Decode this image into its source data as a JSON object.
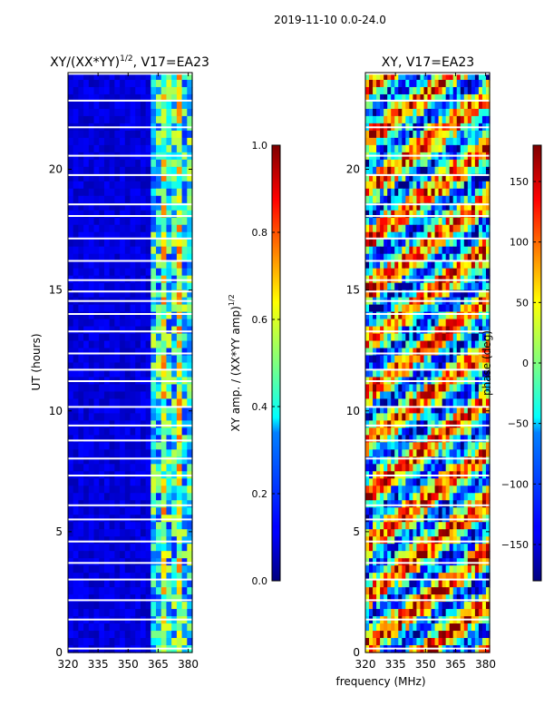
{
  "figure": {
    "suptitle": "2019-11-10 0.0-24.0",
    "xlabel_shared": "frequency (MHz)"
  },
  "chart_data": [
    {
      "type": "heatmap",
      "title_prefix": "XY/(XX*YY)",
      "title_sup": "1/2",
      "title_suffix": ", V17=EA23",
      "ylabel": "UT (hours)",
      "x_ticks": [
        320,
        335,
        350,
        365,
        380
      ],
      "x_tick_labels": [
        "320",
        "335",
        "350",
        "365",
        "380"
      ],
      "xlim": [
        320,
        382
      ],
      "y_ticks": [
        0,
        5,
        10,
        15,
        20
      ],
      "y_tick_labels": [
        "0",
        "5",
        "10",
        "15",
        "20"
      ],
      "ylim": [
        0,
        24
      ],
      "colormap": "jet",
      "colorbar": {
        "label_prefix": "XY amp. / (XX*YY amp)",
        "label_sup": "1/2",
        "range": [
          0.0,
          1.0
        ],
        "ticks": [
          0.0,
          0.2,
          0.4,
          0.6,
          0.8,
          1.0
        ],
        "tick_labels": [
          "0.0",
          "0.2",
          "0.4",
          "0.6",
          "0.8",
          "1.0"
        ]
      }
    },
    {
      "type": "heatmap",
      "title": "XY, V17=EA23",
      "x_ticks": [
        320,
        335,
        350,
        365,
        380
      ],
      "x_tick_labels": [
        "320",
        "335",
        "350",
        "365",
        "380"
      ],
      "xlim": [
        320,
        382
      ],
      "y_ticks": [
        0,
        5,
        10,
        15,
        20
      ],
      "y_tick_labels": [
        "0",
        "5",
        "10",
        "15",
        "20"
      ],
      "ylim": [
        0,
        24
      ],
      "colormap": "jet",
      "colorbar": {
        "label": "phase (deg)",
        "range": [
          -180,
          180
        ],
        "ticks": [
          -150,
          -100,
          -50,
          0,
          50,
          100,
          150
        ],
        "tick_labels": [
          "−150",
          "−100",
          "−50",
          "0",
          "50",
          "100",
          "150"
        ]
      }
    }
  ]
}
